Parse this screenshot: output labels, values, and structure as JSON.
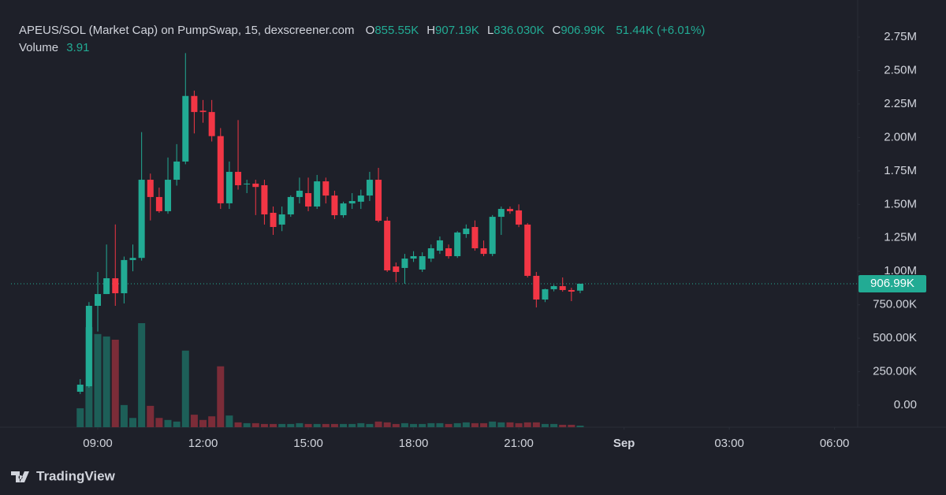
{
  "chart_data": {
    "type": "candlestick",
    "title": "APEUS/SOL (Market Cap) on PumpSwap, 15, dexscreener.com",
    "ohlc_legend": [
      {
        "label": "O",
        "value": "855.55K"
      },
      {
        "label": "H",
        "value": "907.19K"
      },
      {
        "label": "L",
        "value": "836.030K"
      },
      {
        "label": "C",
        "value": "906.99K"
      }
    ],
    "change": "51.44K (+6.01%)",
    "volume_title": "Volume",
    "last_price_label": "906.99K",
    "source": "TradingView",
    "up_color": "#22ab94",
    "down_color": "#f23645",
    "volume_up_color": "#1d5f58",
    "volume_down_color": "#7b2c38",
    "x": [
      8.5,
      8.75,
      9,
      9.25,
      9.5,
      9.75,
      10,
      10.25,
      10.5,
      10.75,
      11,
      11.25,
      11.5,
      11.75,
      12,
      12.25,
      12.5,
      12.75,
      13,
      13.25,
      13.5,
      13.75,
      14,
      14.25,
      14.5,
      14.75,
      15,
      15.25,
      15.5,
      15.75,
      16,
      16.25,
      16.5,
      16.75,
      17,
      17.25,
      17.5,
      17.75,
      18,
      18.25,
      18.5,
      18.75,
      19,
      19.25,
      19.5,
      19.75,
      20,
      20.25,
      20.5,
      20.75,
      21,
      21.25,
      21.5,
      21.75,
      22,
      22.25,
      22.5,
      22.75
    ],
    "open": [
      100000,
      141000,
      742000,
      830000,
      948000,
      836000,
      1084000,
      1100000,
      1684000,
      1555000,
      1449000,
      1684000,
      1820000,
      2310000,
      2200000,
      2190000,
      2010000,
      1508000,
      1743000,
      1650000,
      1655000,
      1643000,
      1437000,
      1349000,
      1425000,
      1555000,
      1584000,
      1484000,
      1672000,
      1566000,
      1419000,
      1507000,
      1520000,
      1566000,
      1684000,
      1378000,
      1036000,
      1025000,
      1095000,
      1013000,
      1095000,
      1154000,
      1172000,
      1113000,
      1278000,
      1331000,
      1172000,
      1130000,
      1407000,
      1466000,
      1455000,
      1349000,
      966000,
      789000,
      866000,
      889000,
      860000,
      855550
    ],
    "high": [
      194000,
      770000,
      995000,
      1200000,
      1350000,
      1110000,
      1200000,
      2040000,
      1730000,
      1625000,
      1850000,
      1950000,
      2630000,
      2350000,
      2280000,
      2280000,
      2070000,
      1820000,
      2130000,
      1684000,
      1684000,
      1684000,
      1484000,
      1484000,
      1567000,
      1700000,
      1700000,
      1720000,
      1700000,
      1602000,
      1520000,
      1584000,
      1610000,
      1743000,
      1773000,
      1407000,
      1066000,
      1130000,
      1150000,
      1142000,
      1200000,
      1260000,
      1200000,
      1300000,
      1350000,
      1380000,
      1230000,
      1420000,
      1484000,
      1484000,
      1500000,
      1360000,
      995000,
      870000,
      900000,
      954000,
      877000,
      907190
    ],
    "low": [
      83000,
      130000,
      550000,
      830000,
      742000,
      760000,
      1000000,
      1080000,
      1380000,
      1437000,
      1430000,
      1640000,
      1800000,
      2030000,
      2110000,
      1970000,
      1466000,
      1466000,
      1610000,
      1584000,
      1420000,
      1349000,
      1272000,
      1300000,
      1407000,
      1507000,
      1449000,
      1466000,
      1507000,
      1390000,
      1400000,
      1466000,
      1466000,
      1525000,
      1366000,
      995000,
      919000,
      907000,
      1070000,
      995000,
      1070000,
      1130000,
      1095000,
      1100000,
      1250000,
      1154000,
      1113000,
      1113000,
      1272000,
      1430000,
      1330000,
      954000,
      730000,
      770000,
      850000,
      848000,
      777000,
      836030
    ],
    "close": [
      153000,
      742000,
      830000,
      948000,
      836000,
      1084000,
      1100000,
      1684000,
      1555000,
      1449000,
      1684000,
      1820000,
      2310000,
      2190000,
      2190000,
      2010000,
      1508000,
      1743000,
      1643000,
      1655000,
      1630000,
      1425000,
      1331000,
      1425000,
      1555000,
      1602000,
      1484000,
      1672000,
      1566000,
      1419000,
      1507000,
      1525000,
      1566000,
      1684000,
      1378000,
      1007000,
      995000,
      1095000,
      1113000,
      1113000,
      1172000,
      1231000,
      1113000,
      1290000,
      1319000,
      1172000,
      1130000,
      1407000,
      1466000,
      1449000,
      1349000,
      966000,
      789000,
      866000,
      889000,
      860000,
      848000,
      906990
    ],
    "volume": [
      47,
      248,
      231,
      225,
      217,
      55,
      23,
      258,
      53,
      23,
      18,
      14,
      190,
      31,
      18,
      27,
      151,
      29,
      12,
      10,
      10,
      8,
      8,
      8,
      8,
      10,
      8,
      8,
      8,
      8,
      8,
      8,
      10,
      8,
      14,
      12,
      8,
      10,
      8,
      8,
      10,
      10,
      8,
      10,
      12,
      10,
      10,
      14,
      12,
      12,
      10,
      12,
      12,
      8,
      8,
      6,
      6,
      3.91
    ],
    "xlim": [
      6.528,
      30.66
    ],
    "xticks": [
      {
        "value": 9,
        "label": "09:00"
      },
      {
        "value": 12,
        "label": "12:00"
      },
      {
        "value": 15,
        "label": "15:00"
      },
      {
        "value": 18,
        "label": "18:00"
      },
      {
        "value": 21,
        "label": "21:00"
      },
      {
        "value": 24,
        "label": "Sep"
      },
      {
        "value": 27,
        "label": "03:00"
      },
      {
        "value": 30,
        "label": "06:00"
      }
    ],
    "ylim": [
      -165000,
      3027000
    ],
    "yticks": [
      {
        "value": 0,
        "label": "0.00"
      },
      {
        "value": 250000,
        "label": "250.00K"
      },
      {
        "value": 500000,
        "label": "500.00K"
      },
      {
        "value": 750000,
        "label": "750.00K"
      },
      {
        "value": 1000000,
        "label": "1.00M"
      },
      {
        "value": 1250000,
        "label": "1.25M"
      },
      {
        "value": 1500000,
        "label": "1.50M"
      },
      {
        "value": 1750000,
        "label": "1.75M"
      },
      {
        "value": 2000000,
        "label": "2.00M"
      },
      {
        "value": 2250000,
        "label": "2.25M"
      },
      {
        "value": 2500000,
        "label": "2.50M"
      },
      {
        "value": 2750000,
        "label": "2.75M"
      }
    ],
    "grid": false
  }
}
